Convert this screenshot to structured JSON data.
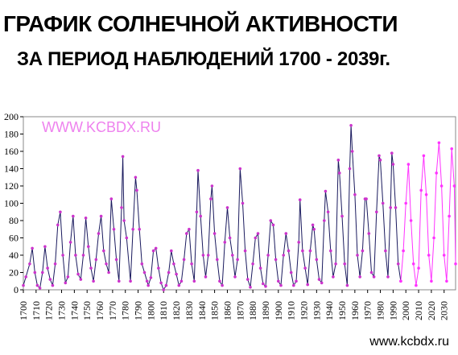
{
  "page": {
    "title_line1": "ГРАФИК СОЛНЕЧНОЙ АКТИВНОСТИ",
    "title_line2": "ЗА ПЕРИОД НАБЛЮДЕНИЙ 1700 - 2039г.",
    "watermark": "WWW.KCBDX.RU",
    "footer": "www.kcbdx.ru"
  },
  "colors": {
    "observed_line": "#1a1a5e",
    "observed_marker": "#cc33cc",
    "forecast": "#ff33ff",
    "watermark": "#ee82ee"
  },
  "chart_data": {
    "type": "line",
    "title": "",
    "xlabel": "",
    "ylabel": "",
    "xlim": [
      1700,
      2039
    ],
    "ylim": [
      0,
      200
    ],
    "y_ticks": [
      0,
      20,
      40,
      60,
      80,
      100,
      120,
      140,
      160,
      180,
      200
    ],
    "x_ticks": [
      1700,
      1710,
      1720,
      1730,
      1740,
      1750,
      1760,
      1770,
      1780,
      1790,
      1800,
      1810,
      1820,
      1830,
      1840,
      1850,
      1860,
      1870,
      1880,
      1890,
      1900,
      1910,
      1920,
      1930,
      1940,
      1950,
      1960,
      1970,
      1980,
      1990,
      2000,
      2010,
      2020,
      2030
    ],
    "grid": false,
    "series": [
      {
        "role": "observed",
        "x": [
          1700,
          1702,
          1705,
          1707,
          1709,
          1711,
          1713,
          1715,
          1717,
          1719,
          1721,
          1723,
          1725,
          1727,
          1729,
          1731,
          1733,
          1735,
          1737,
          1739,
          1741,
          1743,
          1745,
          1747,
          1749,
          1751,
          1753,
          1755,
          1757,
          1759,
          1761,
          1763,
          1765,
          1767,
          1769,
          1771,
          1773,
          1775,
          1777,
          1778,
          1779,
          1781,
          1784,
          1786,
          1788,
          1789,
          1791,
          1793,
          1795,
          1797,
          1798,
          1800,
          1802,
          1804,
          1806,
          1808,
          1810,
          1812,
          1814,
          1816,
          1818,
          1820,
          1822,
          1824,
          1826,
          1828,
          1830,
          1832,
          1834,
          1836,
          1837,
          1839,
          1841,
          1843,
          1845,
          1847,
          1848,
          1850,
          1852,
          1854,
          1856,
          1858,
          1860,
          1862,
          1864,
          1866,
          1868,
          1870,
          1872,
          1874,
          1876,
          1878,
          1880,
          1882,
          1884,
          1886,
          1888,
          1890,
          1892,
          1894,
          1896,
          1898,
          1900,
          1902,
          1904,
          1906,
          1908,
          1910,
          1912,
          1914,
          1916,
          1917,
          1919,
          1921,
          1923,
          1925,
          1927,
          1928,
          1930,
          1932,
          1934,
          1936,
          1937,
          1939,
          1941,
          1943,
          1945,
          1947,
          1948,
          1950,
          1952,
          1954,
          1956,
          1957,
          1958,
          1960,
          1962,
          1964,
          1966,
          1968,
          1969,
          1971,
          1973,
          1975,
          1977,
          1979,
          1980,
          1982,
          1984,
          1986,
          1988,
          1989,
          1990,
          1992,
          1994,
          1996
        ],
        "y": [
          5,
          15,
          30,
          48,
          20,
          5,
          2,
          20,
          50,
          25,
          12,
          5,
          30,
          75,
          90,
          40,
          8,
          15,
          55,
          85,
          40,
          18,
          12,
          40,
          83,
          50,
          25,
          10,
          35,
          65,
          85,
          45,
          30,
          20,
          105,
          70,
          35,
          10,
          95,
          154,
          80,
          60,
          10,
          70,
          130,
          115,
          70,
          30,
          20,
          10,
          5,
          14,
          45,
          48,
          25,
          8,
          0,
          5,
          20,
          45,
          30,
          18,
          5,
          10,
          35,
          65,
          70,
          30,
          10,
          90,
          138,
          85,
          40,
          15,
          40,
          105,
          120,
          65,
          35,
          10,
          5,
          55,
          95,
          60,
          40,
          15,
          35,
          140,
          100,
          45,
          12,
          3,
          30,
          60,
          65,
          25,
          7,
          4,
          40,
          80,
          75,
          35,
          10,
          5,
          40,
          65,
          45,
          20,
          5,
          10,
          55,
          104,
          45,
          25,
          6,
          45,
          75,
          70,
          35,
          12,
          8,
          80,
          114,
          90,
          45,
          15,
          30,
          150,
          135,
          85,
          30,
          5,
          140,
          190,
          160,
          110,
          40,
          15,
          45,
          105,
          105,
          65,
          20,
          15,
          90,
          155,
          150,
          100,
          45,
          15,
          95,
          158,
          145,
          95,
          30,
          10
        ],
        "color": "#1a1a5e",
        "marker": "#cc33cc"
      },
      {
        "role": "forecast",
        "x": [
          1996,
          1998,
          2000,
          2002,
          2004,
          2006,
          2008,
          2010,
          2012,
          2014,
          2016,
          2018,
          2020,
          2022,
          2024,
          2026,
          2028,
          2030,
          2032,
          2034,
          2036,
          2038,
          2039
        ],
        "y": [
          10,
          45,
          100,
          145,
          80,
          30,
          5,
          25,
          115,
          155,
          110,
          40,
          10,
          60,
          135,
          170,
          120,
          40,
          10,
          85,
          163,
          120,
          30
        ],
        "color": "#ff33ff"
      }
    ]
  }
}
